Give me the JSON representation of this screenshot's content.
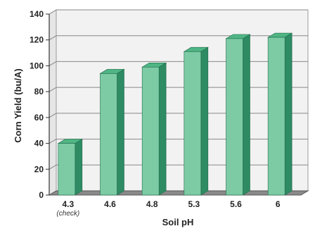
{
  "chart_data": {
    "type": "bar",
    "categories": [
      "4.3",
      "4.6",
      "4.8",
      "5.3",
      "5.6",
      "6"
    ],
    "category_notes": [
      "(check)",
      "",
      "",
      "",
      "",
      ""
    ],
    "values": [
      40,
      94,
      99,
      111,
      121,
      122
    ],
    "xlabel": "Soil pH",
    "ylabel": "Corn Yield (bu/A)",
    "ylim": [
      0,
      140
    ],
    "yticks": [
      0,
      20,
      40,
      60,
      80,
      100,
      120,
      140
    ],
    "grid": true,
    "legend": "none",
    "bar_color": "#7ccba4",
    "bar_side_color": "#2e8b63",
    "bar_top_color": "#4fb584",
    "wall_color": "#f2f2f2",
    "floor_color": "#8a8a8a"
  }
}
